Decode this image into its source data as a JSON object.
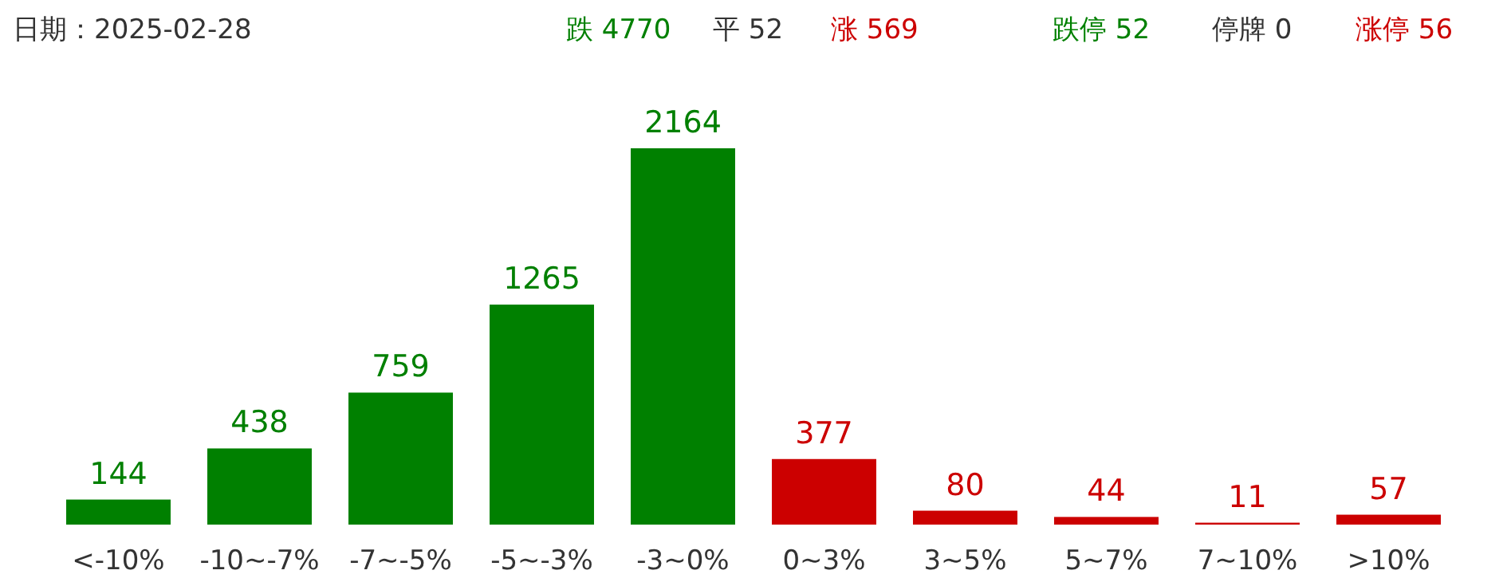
{
  "chart_data": {
    "type": "bar",
    "annotations": [
      "日期：2025-02-28",
      "跌 4770",
      "平 52",
      "涨 569",
      "跌停 52",
      "停牌 0",
      "涨停 56"
    ],
    "categories": [
      "<-10%",
      "-10~-7%",
      "-7~-5%",
      "-5~-3%",
      "-3~0%",
      "0~3%",
      "3~5%",
      "5~7%",
      "7~10%",
      ">10%"
    ],
    "values": [
      144,
      438,
      759,
      1265,
      2164,
      377,
      80,
      44,
      11,
      57
    ],
    "colors": [
      "#008000",
      "#008000",
      "#008000",
      "#008000",
      "#008000",
      "#cc0000",
      "#cc0000",
      "#cc0000",
      "#cc0000",
      "#cc0000"
    ],
    "data_labels": true
  }
}
